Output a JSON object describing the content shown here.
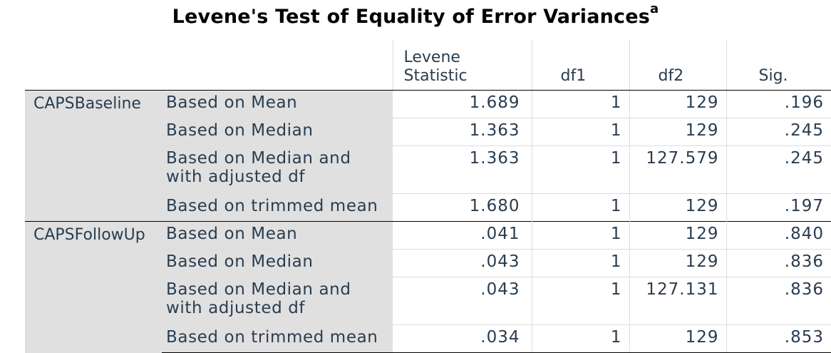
{
  "title": "Levene's Test of Equality of Error Variances",
  "title_superscript": "a",
  "columns": {
    "levene_statistic_line1": "Levene",
    "levene_statistic_line2": "Statistic",
    "df1": "df1",
    "df2": "df2",
    "sig": "Sig."
  },
  "groups": [
    {
      "name": "CAPSBaseline",
      "rows": [
        {
          "label": "Based on Mean",
          "statistic": "1.689",
          "df1": "1",
          "df2": "129",
          "sig": ".196"
        },
        {
          "label": "Based on Median",
          "statistic": "1.363",
          "df1": "1",
          "df2": "129",
          "sig": ".245"
        },
        {
          "label_line1": "Based on Median and",
          "label_line2": "with adjusted df",
          "statistic": "1.363",
          "df1": "1",
          "df2": "127.579",
          "sig": ".245"
        },
        {
          "label": "Based on trimmed mean",
          "statistic": "1.680",
          "df1": "1",
          "df2": "129",
          "sig": ".197"
        }
      ]
    },
    {
      "name": "CAPSFollowUp",
      "rows": [
        {
          "label": "Based on Mean",
          "statistic": ".041",
          "df1": "1",
          "df2": "129",
          "sig": ".840"
        },
        {
          "label": "Based on Median",
          "statistic": ".043",
          "df1": "1",
          "df2": "129",
          "sig": ".836"
        },
        {
          "label_line1": "Based on Median and",
          "label_line2": "with adjusted df",
          "statistic": ".043",
          "df1": "1",
          "df2": "127.131",
          "sig": ".836"
        },
        {
          "label": "Based on trimmed mean",
          "statistic": ".034",
          "df1": "1",
          "df2": "129",
          "sig": ".853"
        }
      ]
    }
  ]
}
